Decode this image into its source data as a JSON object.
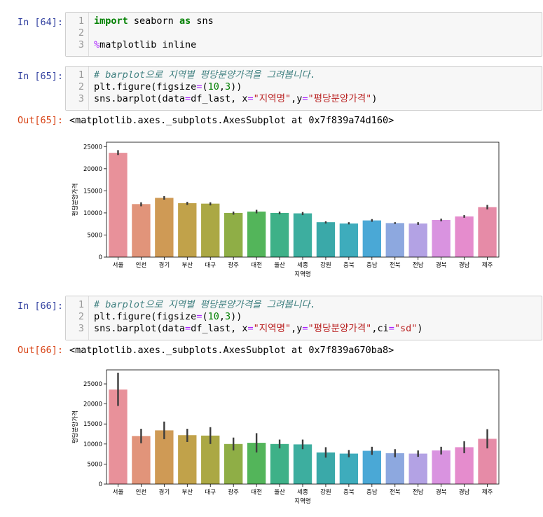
{
  "cells": [
    {
      "prompt": "In [64]:",
      "lines": [
        {
          "n": "1",
          "tokens": [
            {
              "t": "import",
              "c": "kw"
            },
            {
              "t": " seaborn ",
              "c": ""
            },
            {
              "t": "as",
              "c": "kw"
            },
            {
              "t": " sns",
              "c": ""
            }
          ]
        },
        {
          "n": "2",
          "tokens": []
        },
        {
          "n": "3",
          "tokens": [
            {
              "t": "%",
              "c": "mg"
            },
            {
              "t": "matplotlib inline",
              "c": ""
            }
          ]
        }
      ]
    },
    {
      "prompt": "In [65]:",
      "lines": [
        {
          "n": "1",
          "tokens": [
            {
              "t": "# barplot으로 지역별 평당분양가격을 그려봅니다.",
              "c": "cm"
            }
          ]
        },
        {
          "n": "2",
          "tokens": [
            {
              "t": "plt.figure(figsize",
              "c": ""
            },
            {
              "t": "=",
              "c": "op"
            },
            {
              "t": "(",
              "c": ""
            },
            {
              "t": "10",
              "c": "nu"
            },
            {
              "t": ",",
              "c": ""
            },
            {
              "t": "3",
              "c": "nu"
            },
            {
              "t": "))",
              "c": ""
            }
          ]
        },
        {
          "n": "3",
          "tokens": [
            {
              "t": "sns.barplot(data",
              "c": ""
            },
            {
              "t": "=",
              "c": "op"
            },
            {
              "t": "df_last, x",
              "c": ""
            },
            {
              "t": "=",
              "c": "op"
            },
            {
              "t": "\"지역명\"",
              "c": "st"
            },
            {
              "t": ",y",
              "c": ""
            },
            {
              "t": "=",
              "c": "op"
            },
            {
              "t": "\"평당분양가격\"",
              "c": "st"
            },
            {
              "t": ")",
              "c": ""
            }
          ]
        }
      ]
    },
    {
      "prompt": "In [66]:",
      "lines": [
        {
          "n": "1",
          "tokens": [
            {
              "t": "# barplot으로 지역별 평당분양가격을 그려봅니다.",
              "c": "cm"
            }
          ]
        },
        {
          "n": "2",
          "tokens": [
            {
              "t": "plt.figure(figsize",
              "c": ""
            },
            {
              "t": "=",
              "c": "op"
            },
            {
              "t": "(",
              "c": ""
            },
            {
              "t": "10",
              "c": "nu"
            },
            {
              "t": ",",
              "c": ""
            },
            {
              "t": "3",
              "c": "nu"
            },
            {
              "t": "))",
              "c": ""
            }
          ]
        },
        {
          "n": "3",
          "tokens": [
            {
              "t": "sns.barplot(data",
              "c": ""
            },
            {
              "t": "=",
              "c": "op"
            },
            {
              "t": "df_last, x",
              "c": ""
            },
            {
              "t": "=",
              "c": "op"
            },
            {
              "t": "\"지역명\"",
              "c": "st"
            },
            {
              "t": ",y",
              "c": ""
            },
            {
              "t": "=",
              "c": "op"
            },
            {
              "t": "\"평당분양가격\"",
              "c": "st"
            },
            {
              "t": ",ci",
              "c": ""
            },
            {
              "t": "=",
              "c": "op"
            },
            {
              "t": "\"sd\"",
              "c": "st"
            },
            {
              "t": ")",
              "c": ""
            }
          ]
        }
      ]
    }
  ],
  "outputs": [
    {
      "prompt": "Out[65]:",
      "text": "<matplotlib.axes._subplots.AxesSubplot at 0x7f839a74d160>"
    },
    {
      "prompt": "Out[66]:",
      "text": "<matplotlib.axes._subplots.AxesSubplot at 0x7f839a670ba8>"
    }
  ],
  "chart_data": [
    {
      "type": "bar",
      "title": "",
      "xlabel": "지역명",
      "ylabel": "평당분양가격",
      "ylim": [
        0,
        26000
      ],
      "yticks": [
        0,
        5000,
        10000,
        15000,
        20000,
        25000
      ],
      "categories": [
        "서울",
        "인천",
        "경기",
        "부산",
        "대구",
        "광주",
        "대전",
        "울산",
        "세종",
        "강원",
        "충북",
        "충남",
        "전북",
        "전남",
        "경북",
        "경남",
        "제주"
      ],
      "values": [
        23600,
        12000,
        13400,
        12200,
        12100,
        10000,
        10300,
        10000,
        9900,
        7900,
        7600,
        8300,
        7700,
        7600,
        8400,
        9200,
        11300
      ],
      "err_low": [
        23100,
        11500,
        13000,
        11800,
        11700,
        9600,
        9900,
        9700,
        9500,
        7600,
        7400,
        8000,
        7500,
        7300,
        8100,
        8900,
        10800
      ],
      "err_high": [
        24200,
        12400,
        13800,
        12500,
        12400,
        10300,
        10700,
        10300,
        10200,
        8100,
        7900,
        8600,
        7900,
        7900,
        8700,
        9500,
        11800
      ],
      "colors": [
        "#e8919a",
        "#e1947a",
        "#cf9a55",
        "#c1a24a",
        "#aba844",
        "#8fae46",
        "#53b55a",
        "#3eb188",
        "#3dae9f",
        "#3aa9a9",
        "#3eacbc",
        "#4aa8d6",
        "#8da8df",
        "#b3a2e4",
        "#d993e0",
        "#e58ccd",
        "#e68ba7"
      ],
      "grid": false,
      "legend": "none"
    },
    {
      "type": "bar",
      "title": "",
      "xlabel": "지역명",
      "ylabel": "평당분양가격",
      "ylim": [
        0,
        28500
      ],
      "yticks": [
        0,
        5000,
        10000,
        15000,
        20000,
        25000
      ],
      "categories": [
        "서울",
        "인천",
        "경기",
        "부산",
        "대구",
        "광주",
        "대전",
        "울산",
        "세종",
        "강원",
        "충북",
        "충남",
        "전북",
        "전남",
        "경북",
        "경남",
        "제주"
      ],
      "values": [
        23600,
        12000,
        13400,
        12200,
        12100,
        10000,
        10300,
        10000,
        9900,
        7900,
        7600,
        8300,
        7700,
        7600,
        8400,
        9200,
        11300
      ],
      "err_low": [
        19500,
        10200,
        11200,
        10500,
        10000,
        8400,
        7900,
        8900,
        8700,
        6600,
        6700,
        7300,
        6700,
        6800,
        7400,
        7700,
        8900
      ],
      "err_high": [
        27800,
        13800,
        15600,
        13800,
        14200,
        11600,
        12700,
        11100,
        11100,
        9200,
        8500,
        9300,
        8700,
        8400,
        9300,
        10700,
        13700
      ],
      "colors": [
        "#e8919a",
        "#e1947a",
        "#cf9a55",
        "#c1a24a",
        "#aba844",
        "#8fae46",
        "#53b55a",
        "#3eb188",
        "#3dae9f",
        "#3aa9a9",
        "#3eacbc",
        "#4aa8d6",
        "#8da8df",
        "#b3a2e4",
        "#d993e0",
        "#e58ccd",
        "#e68ba7"
      ],
      "grid": false,
      "legend": "none"
    }
  ]
}
